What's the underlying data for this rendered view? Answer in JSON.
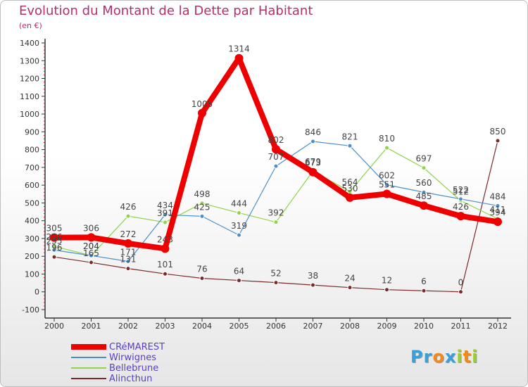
{
  "header": {
    "title": "Evolution du Montant de la Dette par Habitant",
    "subtitle": "(en €)"
  },
  "colors": {
    "title": "#b0306e",
    "axis": "#333333",
    "grid": "#e2e2e2"
  },
  "logo": {
    "letters": [
      {
        "ch": "P",
        "color": "#3aa0d8"
      },
      {
        "ch": "r",
        "color": "#3aa0d8"
      },
      {
        "ch": "o",
        "color": "#f08a1c"
      },
      {
        "ch": "x",
        "color": "#3aa0d8"
      },
      {
        "ch": "i",
        "color": "#9acd32"
      },
      {
        "ch": "t",
        "color": "#f08a1c"
      },
      {
        "ch": "i",
        "color": "#9acd32"
      }
    ]
  },
  "chart_data": {
    "type": "line",
    "title": "Evolution du Montant de la Dette par Habitant",
    "subtitle": "(en €)",
    "x": [
      "2000",
      "2001",
      "2002",
      "2003",
      "2004",
      "2005",
      "2006",
      "2007",
      "2008",
      "2009",
      "2010",
      "2011",
      "2012"
    ],
    "ylim": [
      -100,
      1400
    ],
    "yticks": [
      -100,
      0,
      100,
      200,
      300,
      400,
      500,
      600,
      700,
      800,
      900,
      1000,
      1100,
      1200,
      1300,
      1400
    ],
    "grid": false,
    "legend_position": "bottom-left",
    "series": [
      {
        "name": "CRéMAREST",
        "color": "#ee0000",
        "width": 8,
        "marker": 6,
        "values": [
          305,
          306,
          272,
          243,
          1005,
          1314,
          802,
          673,
          530,
          551,
          485,
          426,
          394
        ]
      },
      {
        "name": "Wirwignes",
        "color": "#4a8fcc",
        "width": 1.2,
        "marker": 3,
        "values": [
          235,
          204,
          171,
          434,
          425,
          319,
          707,
          846,
          821,
          602,
          560,
          522,
          484
        ]
      },
      {
        "name": "Bellebrune",
        "color": "#8fd44a",
        "width": 1.2,
        "marker": 3,
        "values": [
          256,
          204,
          426,
          391,
          498,
          444,
          392,
          679,
          564,
          810,
          697,
          512,
          411
        ]
      },
      {
        "name": "Alincthun",
        "color": "#7a2a2a",
        "width": 1.2,
        "marker": 3,
        "values": [
          196,
          165,
          131,
          101,
          76,
          64,
          52,
          38,
          24,
          12,
          6,
          0,
          850
        ]
      }
    ],
    "labels": [
      {
        "series": 0,
        "text": [
          "305",
          "306",
          "272",
          "243",
          "1005",
          "1314",
          "802",
          "673",
          "530",
          "551",
          "485",
          "426",
          "394"
        ]
      },
      {
        "series": 1,
        "text": [
          "235",
          "204",
          "171",
          "434",
          "425",
          "319",
          "707",
          "846",
          "821",
          "602",
          "560",
          "522",
          "484"
        ]
      },
      {
        "series": 2,
        "text": [
          "256",
          "204",
          "426",
          "391",
          "498",
          "444",
          "392",
          "679",
          "564",
          "810",
          "697",
          "512",
          "411"
        ]
      },
      {
        "series": 3,
        "text": [
          "196",
          "165",
          "131",
          "101",
          "76",
          "64",
          "52",
          "38",
          "24",
          "12",
          "6",
          "0",
          "850"
        ]
      }
    ]
  }
}
